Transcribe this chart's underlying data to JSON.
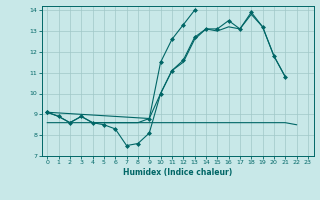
{
  "xlabel": "Humidex (Indice chaleur)",
  "background_color": "#c8e8e8",
  "line_color": "#006666",
  "grid_color": "#a0c8c8",
  "xlim": [
    -0.5,
    23.5
  ],
  "ylim": [
    7,
    14.2
  ],
  "yticks": [
    7,
    8,
    9,
    10,
    11,
    12,
    13,
    14
  ],
  "xticks": [
    0,
    1,
    2,
    3,
    4,
    5,
    6,
    7,
    8,
    9,
    10,
    11,
    12,
    13,
    14,
    15,
    16,
    17,
    18,
    19,
    20,
    21,
    22,
    23
  ],
  "series1_x": [
    0,
    1,
    2,
    3,
    4,
    5,
    6,
    7,
    8,
    9,
    10,
    11,
    12,
    13,
    14,
    15,
    16,
    17,
    18,
    19,
    20,
    21
  ],
  "series1_y": [
    9.1,
    8.9,
    8.6,
    8.9,
    8.6,
    8.5,
    8.3,
    7.5,
    7.6,
    8.1,
    10.0,
    11.1,
    11.6,
    12.7,
    13.1,
    13.1,
    13.5,
    13.1,
    13.9,
    13.2,
    11.8,
    10.8
  ],
  "series2_x": [
    0,
    1,
    2,
    3,
    4,
    5,
    6,
    7,
    8,
    9,
    10,
    11,
    12,
    13,
    14,
    15,
    16,
    17,
    18,
    19,
    20,
    21
  ],
  "series2_y": [
    9.1,
    8.9,
    8.6,
    8.9,
    8.6,
    8.6,
    8.6,
    8.6,
    8.6,
    8.8,
    10.0,
    11.1,
    11.5,
    12.6,
    13.1,
    13.0,
    13.2,
    13.1,
    13.8,
    13.2,
    11.8,
    10.8
  ],
  "series3_x": [
    0,
    9,
    10,
    11,
    12,
    13,
    14,
    15,
    16,
    17,
    18,
    19,
    20,
    21,
    22
  ],
  "series3_y": [
    8.6,
    8.6,
    8.6,
    8.6,
    8.6,
    8.6,
    8.6,
    8.6,
    8.6,
    8.6,
    8.6,
    8.6,
    8.6,
    8.6,
    8.5
  ],
  "series4_x": [
    0,
    9,
    10,
    11,
    12,
    13
  ],
  "series4_y": [
    9.1,
    8.8,
    11.5,
    12.6,
    13.3,
    14.0
  ]
}
